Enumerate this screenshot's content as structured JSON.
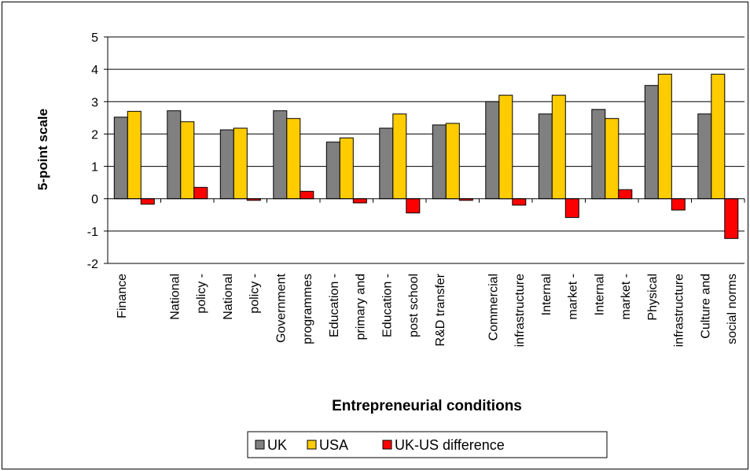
{
  "chart_data": {
    "type": "bar",
    "categories": [
      [
        "Finance"
      ],
      [
        "National",
        "policy -"
      ],
      [
        "National",
        "policy -"
      ],
      [
        "Government",
        "programmes"
      ],
      [
        "Education -",
        "primary and"
      ],
      [
        "Education -",
        "post school"
      ],
      [
        "R&D transfer"
      ],
      [
        "Commercial",
        "infrastructure"
      ],
      [
        "Internal",
        "market -"
      ],
      [
        "Internal",
        "market -"
      ],
      [
        "Physical",
        "infrastructure"
      ],
      [
        "Culture and",
        "social norms"
      ]
    ],
    "series": [
      {
        "name": "UK",
        "color": "#808080",
        "values": [
          2.52,
          2.72,
          2.13,
          2.72,
          1.75,
          2.18,
          2.28,
          3.0,
          2.62,
          2.76,
          3.5,
          2.62
        ]
      },
      {
        "name": "USA",
        "color": "#FFCC00",
        "values": [
          2.7,
          2.38,
          2.18,
          2.48,
          1.88,
          2.62,
          2.33,
          3.2,
          3.2,
          2.48,
          3.85,
          3.85
        ]
      },
      {
        "name": "UK-US difference",
        "color": "#FF0000",
        "values": [
          -0.17,
          0.35,
          -0.05,
          0.23,
          -0.13,
          -0.44,
          -0.05,
          -0.2,
          -0.58,
          0.28,
          -0.35,
          -1.23
        ]
      }
    ],
    "ylim": [
      -2,
      5
    ],
    "yticks": [
      5,
      4,
      3,
      2,
      1,
      0,
      -1,
      -2
    ],
    "ylabel": "5-point scale",
    "xlabel": "Entrepreneurial conditions",
    "grid": true,
    "legend_position": "bottom"
  }
}
